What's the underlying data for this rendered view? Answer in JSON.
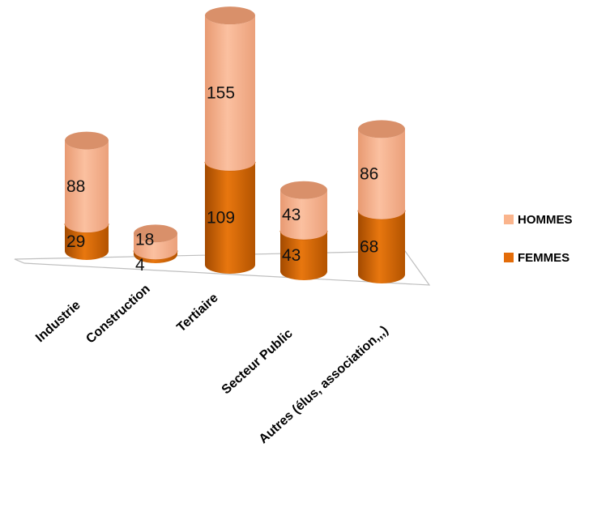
{
  "chart_data": {
    "type": "bar",
    "style": "3d-cylinder-stacked",
    "categories": [
      "Industrie",
      "Construction",
      "Tertiaire",
      "Secteur Public",
      "Autres (élus, association,,,)"
    ],
    "series": [
      {
        "name": "FEMMES",
        "values": [
          29,
          4,
          109,
          43,
          68
        ],
        "color": "#E36C09"
      },
      {
        "name": "HOMMES",
        "values": [
          88,
          18,
          155,
          43,
          86
        ],
        "color": "#FAB48C"
      }
    ],
    "title": "",
    "xlabel": "",
    "ylabel": "",
    "data_labels": true,
    "grid": false,
    "legend": "right"
  }
}
